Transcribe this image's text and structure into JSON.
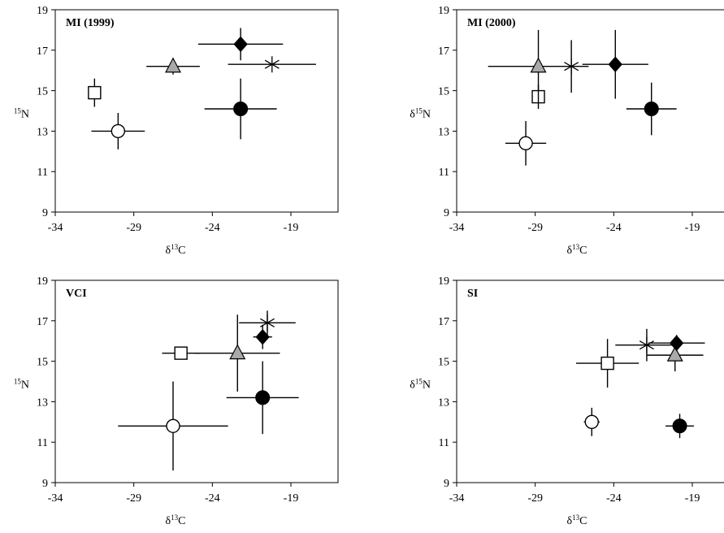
{
  "chart_data": [
    {
      "type": "scatter",
      "title": "MI (1999)",
      "xlabel": "δ13C",
      "ylabel": "15N",
      "xlim": [
        -34,
        -16
      ],
      "ylim": [
        9,
        19
      ],
      "xticks": [
        -34,
        -29,
        -24,
        -19
      ],
      "yticks": [
        9,
        11,
        13,
        15,
        17,
        19
      ],
      "grid": false,
      "points": [
        {
          "marker": "square",
          "x": -31.5,
          "y": 14.9,
          "xerr": 0.2,
          "yerr": 0.7
        },
        {
          "marker": "circle-open",
          "x": -30.0,
          "y": 13.0,
          "xerr": 1.7,
          "yerr": 0.9
        },
        {
          "marker": "triangle",
          "x": -26.5,
          "y": 16.2,
          "xerr": 1.7,
          "yerr": 0.4
        },
        {
          "marker": "diamond",
          "x": -22.2,
          "y": 17.3,
          "xerr": 2.7,
          "yerr": 0.8
        },
        {
          "marker": "star",
          "x": -20.2,
          "y": 16.3,
          "xerr": 2.8,
          "yerr": 0.0
        },
        {
          "marker": "circle-filled",
          "x": -22.2,
          "y": 14.1,
          "xerr": 2.3,
          "yerr": 1.5
        }
      ]
    },
    {
      "type": "scatter",
      "title": "MI (2000)",
      "xlabel": "δ13C",
      "ylabel": "δ15N",
      "xlim": [
        -34,
        -16
      ],
      "ylim": [
        9,
        19
      ],
      "xticks": [
        -34,
        -29,
        -24,
        -19
      ],
      "yticks": [
        9,
        11,
        13,
        15,
        17,
        19
      ],
      "grid": false,
      "points": [
        {
          "marker": "circle-open",
          "x": -29.6,
          "y": 12.4,
          "xerr": 1.3,
          "yerr": 1.1
        },
        {
          "marker": "square",
          "x": -28.8,
          "y": 14.7,
          "xerr": 0.2,
          "yerr": 0.6
        },
        {
          "marker": "triangle",
          "x": -28.8,
          "y": 16.2,
          "xerr": 3.2,
          "yerr": 1.8
        },
        {
          "marker": "star",
          "x": -26.7,
          "y": 16.2,
          "xerr": 0.0,
          "yerr": 1.3
        },
        {
          "marker": "diamond",
          "x": -23.9,
          "y": 16.3,
          "xerr": 2.1,
          "yerr": 1.7
        },
        {
          "marker": "circle-filled",
          "x": -21.6,
          "y": 14.1,
          "xerr": 1.6,
          "yerr": 1.3
        }
      ]
    },
    {
      "type": "scatter",
      "title": "VCI",
      "xlabel": "δ13C",
      "ylabel": "15N",
      "xlim": [
        -34,
        -16
      ],
      "ylim": [
        9,
        19
      ],
      "xticks": [
        -34,
        -29,
        -24,
        -19
      ],
      "yticks": [
        9,
        11,
        13,
        15,
        17,
        19
      ],
      "grid": false,
      "points": [
        {
          "marker": "circle-open",
          "x": -26.5,
          "y": 11.8,
          "xerr": 3.5,
          "yerr": 2.2
        },
        {
          "marker": "square",
          "x": -26.0,
          "y": 15.4,
          "xerr": 1.2,
          "yerr": 0.3
        },
        {
          "marker": "triangle",
          "x": -22.4,
          "y": 15.4,
          "xerr": 2.7,
          "yerr": 1.9
        },
        {
          "marker": "diamond",
          "x": -20.8,
          "y": 16.2,
          "xerr": 0.6,
          "yerr": 0.6
        },
        {
          "marker": "star",
          "x": -20.5,
          "y": 16.9,
          "xerr": 1.8,
          "yerr": 0.6
        },
        {
          "marker": "circle-filled",
          "x": -20.8,
          "y": 13.2,
          "xerr": 2.3,
          "yerr": 1.8
        }
      ]
    },
    {
      "type": "scatter",
      "title": "SI",
      "xlabel": "δ13C",
      "ylabel": "δ15N",
      "xlim": [
        -34,
        -16
      ],
      "ylim": [
        9,
        19
      ],
      "xticks": [
        -34,
        -29,
        -24,
        -19
      ],
      "yticks": [
        9,
        11,
        13,
        15,
        17,
        19
      ],
      "grid": false,
      "points": [
        {
          "marker": "circle-open",
          "x": -25.4,
          "y": 12.0,
          "xerr": 0.5,
          "yerr": 0.7
        },
        {
          "marker": "square",
          "x": -24.4,
          "y": 14.9,
          "xerr": 2.0,
          "yerr": 1.2
        },
        {
          "marker": "star",
          "x": -21.9,
          "y": 15.8,
          "xerr": 2.0,
          "yerr": 0.8
        },
        {
          "marker": "triangle",
          "x": -20.1,
          "y": 15.3,
          "xerr": 1.8,
          "yerr": 0.8
        },
        {
          "marker": "diamond",
          "x": -20.0,
          "y": 15.9,
          "xerr": 1.8,
          "yerr": 0.4
        },
        {
          "marker": "circle-filled",
          "x": -19.8,
          "y": 11.8,
          "xerr": 0.9,
          "yerr": 0.6
        }
      ]
    }
  ]
}
